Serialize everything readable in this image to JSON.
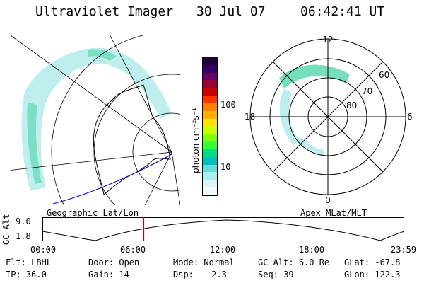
{
  "header": {
    "instrument": "Ultraviolet Imager",
    "date": "30 Jul 07",
    "time": "06:42:41 UT"
  },
  "colorbar": {
    "unit_label": "photon cm⁻²s⁻¹",
    "ticks": [
      "100",
      "10"
    ],
    "colors": [
      "#1a0033",
      "#330066",
      "#660066",
      "#990033",
      "#cc0000",
      "#ff3300",
      "#ff8000",
      "#ffb000",
      "#ffe000",
      "#ccff00",
      "#80ff00",
      "#33ff33",
      "#00e080",
      "#00c0c0",
      "#66dddd",
      "#aaeeee",
      "#ddf4f4",
      "#f2fafa"
    ]
  },
  "polar_plot": {
    "mlt_labels": {
      "top": "12",
      "left": "18",
      "right": "6",
      "bottom": "0"
    },
    "lat_labels": [
      "60",
      "70",
      "80"
    ]
  },
  "panels": {
    "left_caption": "Geographic Lat/Lon",
    "right_caption": "Apex MLat/MLT"
  },
  "altitude_plot": {
    "ylabel": "GC Alt",
    "yticks": [
      "9.0",
      "1.8"
    ],
    "xticks": [
      "00:00",
      "06:00",
      "12:00",
      "18:00",
      "23:59"
    ],
    "current_time_fraction": 0.28,
    "marker_color": "#cc0000"
  },
  "status": {
    "row1": [
      {
        "label": "Flt:",
        "value": "LBHL"
      },
      {
        "label": "Door:",
        "value": "Open"
      },
      {
        "label": "Mode:",
        "value": "Normal"
      },
      {
        "label": "GC Alt:",
        "value": "6.0 Re"
      },
      {
        "label": "GLat:",
        "value": "-67.8"
      }
    ],
    "row2": [
      {
        "label": "IP:",
        "value": "36.0"
      },
      {
        "label": "Gain:",
        "value": "14"
      },
      {
        "label": "Dsp:",
        "value": "2.3"
      },
      {
        "label": "Seq:",
        "value": "39"
      },
      {
        "label": "GLon:",
        "value": "122.3"
      }
    ]
  }
}
